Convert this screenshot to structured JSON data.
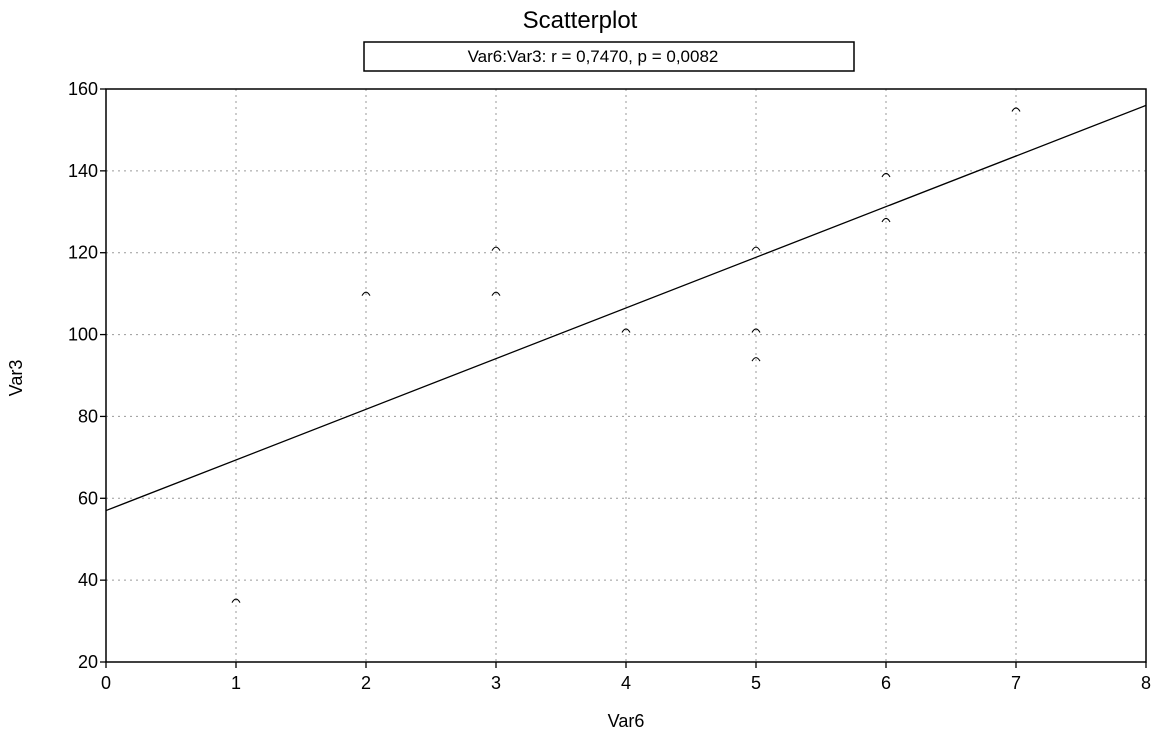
{
  "chart_data": {
    "type": "scatter",
    "title": "Scatterplot",
    "subtitle": "Var6:Var3:   r = 0,7470, p = 0,0082",
    "xlabel": "Var6",
    "ylabel": "Var3",
    "xlim": [
      0,
      8
    ],
    "ylim": [
      20,
      160
    ],
    "xticks": [
      "0",
      "1",
      "2",
      "3",
      "4",
      "5",
      "6",
      "7",
      "8"
    ],
    "yticks": [
      "20",
      "40",
      "60",
      "80",
      "100",
      "120",
      "140",
      "160"
    ],
    "grid": true,
    "points": [
      {
        "x": 1,
        "y": 35
      },
      {
        "x": 2,
        "y": 110
      },
      {
        "x": 3,
        "y": 110
      },
      {
        "x": 3,
        "y": 121
      },
      {
        "x": 4,
        "y": 101
      },
      {
        "x": 5,
        "y": 94
      },
      {
        "x": 5,
        "y": 101
      },
      {
        "x": 5,
        "y": 121
      },
      {
        "x": 6,
        "y": 128
      },
      {
        "x": 6,
        "y": 139
      },
      {
        "x": 7,
        "y": 155
      }
    ],
    "regression_line": {
      "x": [
        0,
        8
      ],
      "y": [
        57,
        156
      ]
    }
  }
}
